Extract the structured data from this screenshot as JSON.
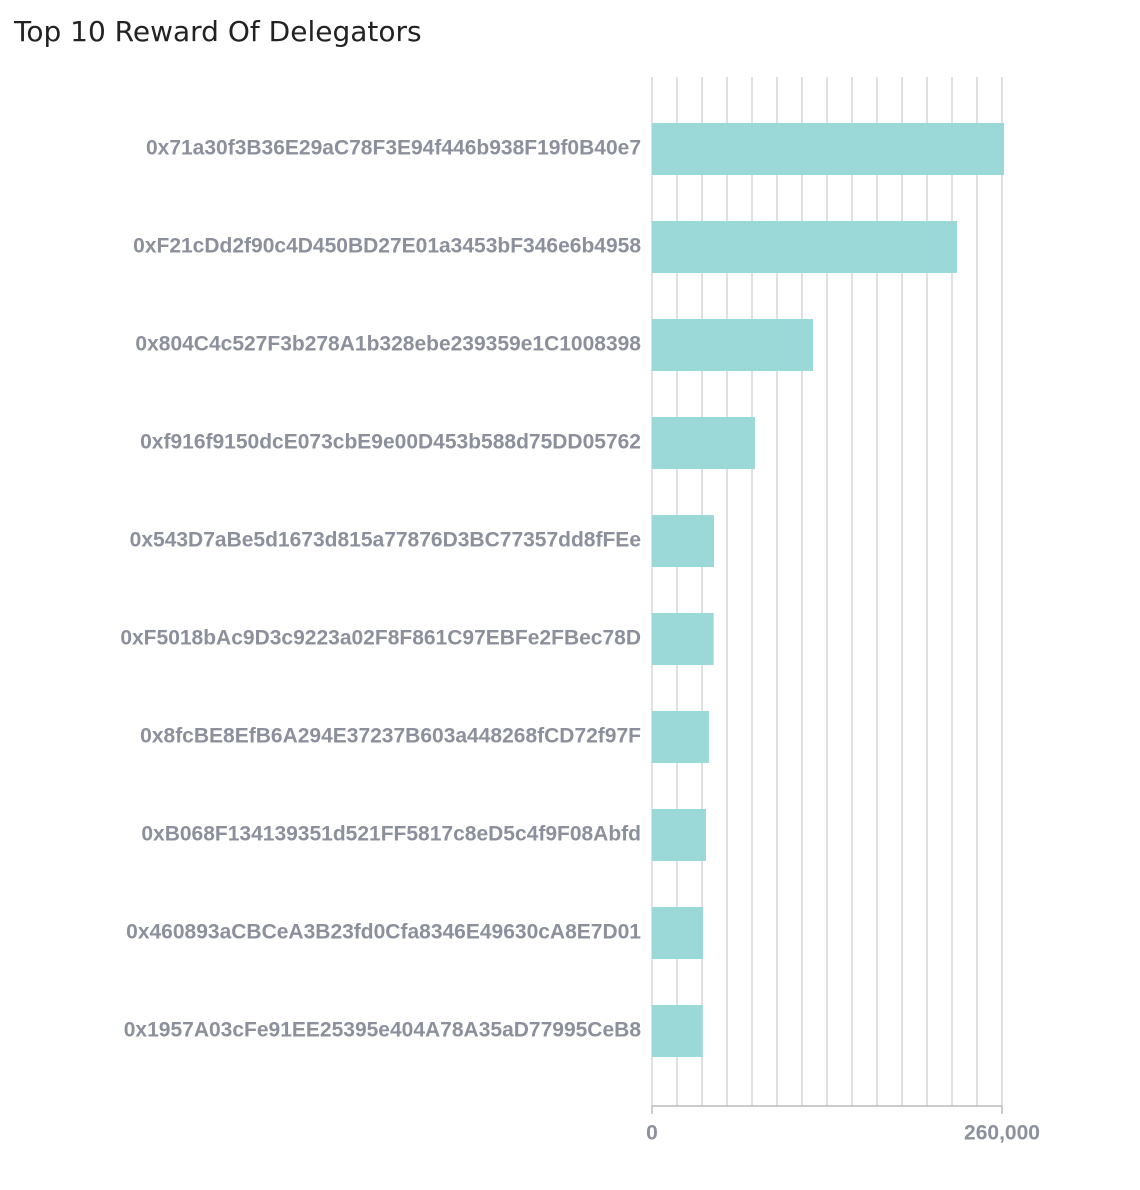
{
  "chart_data": {
    "type": "barh",
    "title": "Top 10 Reward Of Delegators",
    "categories": [
      "0x71a30f3B36E29aC78F3E94f446b938F19f0B40e7",
      "0xF21cDd2f90c4D450BD27E01a3453bF346e6b4958",
      "0x804C4c527F3b278A1b328ebe239359e1C1008398",
      "0xf916f9150dcE073cbE9e00D453b588d75DD05762",
      "0x543D7aBe5d1673d815a77876D3BC77357dd8fFEe",
      "0xF5018bAc9D3c9223a02F8F861C97EBFe2FBec78D",
      "0x8fcBE8EfB6A294E37237B603a448268fCD72f97F",
      "0xB068F134139351d521FF5817c8eD5c4f9F08Abfd",
      "0x460893aCBCeA3B23fd0Cfa8346E49630cA8E7D01",
      "0x1957A03cFe91EE25395e404A78A35aD77995CeB8"
    ],
    "values": [
      261500,
      226600,
      119600,
      76500,
      46100,
      45800,
      42300,
      40100,
      37900,
      37700
    ],
    "color": "#9bd9d9",
    "xlim": [
      0,
      260000
    ],
    "xticks": [
      0,
      {
        "value": 260000,
        "label": "260,000"
      }
    ],
    "minor_xticks": [
      18571,
      37143,
      55714,
      74286,
      92857,
      111429,
      130000,
      148571,
      167143,
      185714,
      204286,
      222857,
      241429
    ],
    "grid": true
  }
}
